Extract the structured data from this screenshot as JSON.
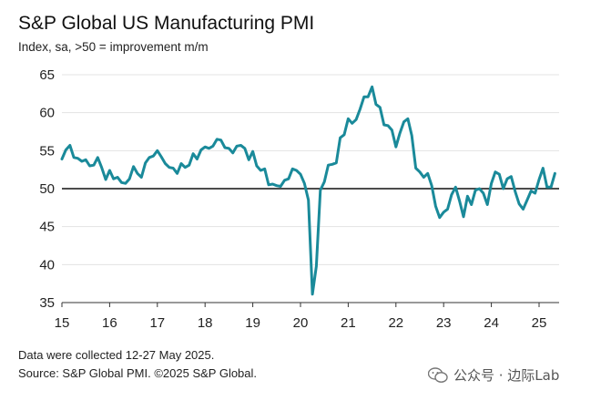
{
  "chart_data": {
    "type": "line",
    "title": "S&P Global US Manufacturing PMI",
    "subtitle": "Index, sa, >50 = improvement m/m",
    "xlabel": "",
    "ylabel": "",
    "x_ticks": [
      "15",
      "16",
      "17",
      "18",
      "19",
      "20",
      "21",
      "22",
      "23",
      "24",
      "25"
    ],
    "x_tick_values": [
      2015,
      2016,
      2017,
      2018,
      2019,
      2020,
      2021,
      2022,
      2023,
      2024,
      2025
    ],
    "y_ticks": [
      35,
      40,
      45,
      50,
      55,
      60,
      65
    ],
    "ylim": [
      35,
      65
    ],
    "xlim": [
      2015.0,
      2025.42
    ],
    "reference_line": 50,
    "grid": "horizontal",
    "series": [
      {
        "name": "S&P Global US Manufacturing PMI",
        "color": "#1a8a9a",
        "x": [
          2015.0,
          2015.083,
          2015.167,
          2015.25,
          2015.333,
          2015.417,
          2015.5,
          2015.583,
          2015.667,
          2015.75,
          2015.833,
          2015.917,
          2016.0,
          2016.083,
          2016.167,
          2016.25,
          2016.333,
          2016.417,
          2016.5,
          2016.583,
          2016.667,
          2016.75,
          2016.833,
          2016.917,
          2017.0,
          2017.083,
          2017.167,
          2017.25,
          2017.333,
          2017.417,
          2017.5,
          2017.583,
          2017.667,
          2017.75,
          2017.833,
          2017.917,
          2018.0,
          2018.083,
          2018.167,
          2018.25,
          2018.333,
          2018.417,
          2018.5,
          2018.583,
          2018.667,
          2018.75,
          2018.833,
          2018.917,
          2019.0,
          2019.083,
          2019.167,
          2019.25,
          2019.333,
          2019.417,
          2019.5,
          2019.583,
          2019.667,
          2019.75,
          2019.833,
          2019.917,
          2020.0,
          2020.083,
          2020.167,
          2020.25,
          2020.333,
          2020.417,
          2020.5,
          2020.583,
          2020.667,
          2020.75,
          2020.833,
          2020.917,
          2021.0,
          2021.083,
          2021.167,
          2021.25,
          2021.333,
          2021.417,
          2021.5,
          2021.583,
          2021.667,
          2021.75,
          2021.833,
          2021.917,
          2022.0,
          2022.083,
          2022.167,
          2022.25,
          2022.333,
          2022.417,
          2022.5,
          2022.583,
          2022.667,
          2022.75,
          2022.833,
          2022.917,
          2023.0,
          2023.083,
          2023.167,
          2023.25,
          2023.333,
          2023.417,
          2023.5,
          2023.583,
          2023.667,
          2023.75,
          2023.833,
          2023.917,
          2024.0,
          2024.083,
          2024.167,
          2024.25,
          2024.333,
          2024.417,
          2024.5,
          2024.583,
          2024.667,
          2024.75,
          2024.833,
          2024.917,
          2025.0,
          2025.083,
          2025.167,
          2025.25,
          2025.333
        ],
        "values": [
          53.9,
          55.1,
          55.7,
          54.1,
          54.0,
          53.6,
          53.8,
          53.0,
          53.1,
          54.1,
          52.8,
          51.2,
          52.4,
          51.3,
          51.5,
          50.8,
          50.7,
          51.3,
          52.9,
          52.0,
          51.5,
          53.4,
          54.1,
          54.3,
          55.0,
          54.2,
          53.3,
          52.8,
          52.7,
          52.0,
          53.3,
          52.8,
          53.1,
          54.6,
          53.9,
          55.1,
          55.5,
          55.3,
          55.6,
          56.5,
          56.4,
          55.4,
          55.3,
          54.7,
          55.6,
          55.7,
          55.3,
          53.8,
          54.9,
          53.0,
          52.4,
          52.6,
          50.5,
          50.6,
          50.4,
          50.3,
          51.1,
          51.3,
          52.6,
          52.4,
          51.9,
          50.7,
          48.5,
          36.1,
          39.8,
          49.8,
          50.9,
          53.1,
          53.2,
          53.4,
          56.7,
          57.1,
          59.2,
          58.6,
          59.1,
          60.5,
          62.1,
          62.1,
          63.4,
          61.1,
          60.7,
          58.4,
          58.3,
          57.7,
          55.5,
          57.3,
          58.8,
          59.2,
          57.0,
          52.7,
          52.2,
          51.5,
          52.0,
          50.4,
          47.7,
          46.2,
          46.9,
          47.3,
          49.2,
          50.2,
          48.4,
          46.3,
          49.0,
          47.9,
          49.8,
          50.0,
          49.4,
          47.9,
          50.7,
          52.2,
          51.9,
          50.0,
          51.3,
          51.6,
          49.6,
          48.0,
          47.3,
          48.5,
          49.7,
          49.4,
          51.2,
          52.7,
          50.2,
          50.2,
          52.0
        ]
      }
    ],
    "notes": [
      "Data were collected 12-27 May 2025.",
      "Source: S&P Global PMI. ©2025 S&P Global."
    ]
  },
  "watermark": {
    "icon": "wechat-icon",
    "text": "公众号 · 边际Lab"
  }
}
